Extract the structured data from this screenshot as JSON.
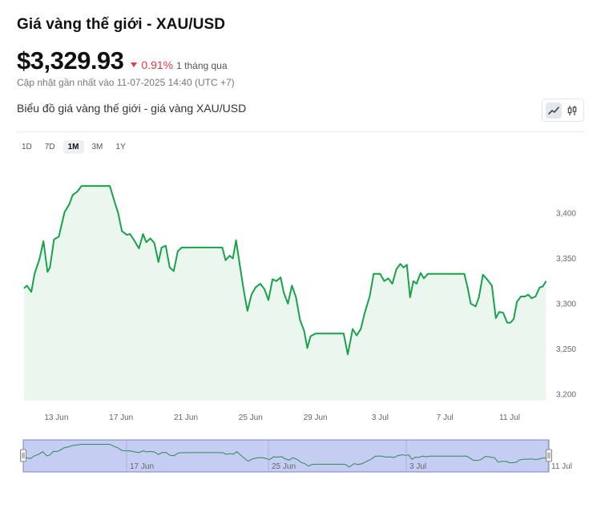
{
  "header": {
    "title": "Giá vàng thế giới - XAU/USD",
    "price": "$3,329.93",
    "change": "0.91%",
    "period": "1 tháng qua",
    "updated": "Cập nhật gần nhất vào 11-07-2025 14:40 (UTC +7)",
    "subtitle": "Biểu đồ giá vàng thế giới - giá vàng XAU/USD"
  },
  "toolbar": {
    "chart_types": [
      {
        "icon": "line-chart-icon",
        "active": true
      },
      {
        "icon": "candlestick-icon",
        "active": false
      }
    ]
  },
  "ranges": [
    {
      "label": "1D",
      "active": false
    },
    {
      "label": "7D",
      "active": false
    },
    {
      "label": "1M",
      "active": true
    },
    {
      "label": "3M",
      "active": false
    },
    {
      "label": "1Y",
      "active": false
    }
  ],
  "colors": {
    "line": "#16a34a",
    "area": "#eaf6ee",
    "change_down": "#e53945",
    "navigator_fill": "#c5cdf3",
    "navigator_border": "#7c86c4"
  },
  "chart_data": {
    "type": "area",
    "x_tick_labels": [
      "13 Jun",
      "17 Jun",
      "21 Jun",
      "25 Jun",
      "29 Jun",
      "3 Jul",
      "7 Jul",
      "11 Jul"
    ],
    "navigator_tick_labels": [
      "17 Jun",
      "25 Jun",
      "3 Jul",
      "11 Jul"
    ],
    "y_ticks": [
      3200,
      3250,
      3300,
      3350,
      3400
    ],
    "ylim": [
      3200,
      3430
    ],
    "x_start": "2025-06-11",
    "series": [
      {
        "values": [
          [
            0,
            3317
          ],
          [
            0.18,
            3320
          ],
          [
            0.45,
            3313
          ],
          [
            0.65,
            3333
          ],
          [
            0.95,
            3349
          ],
          [
            1.2,
            3369
          ],
          [
            1.45,
            3335
          ],
          [
            1.6,
            3340
          ],
          [
            1.85,
            3371
          ],
          [
            2.15,
            3374
          ],
          [
            2.5,
            3401
          ],
          [
            2.8,
            3410
          ],
          [
            3.0,
            3420
          ],
          [
            3.3,
            3424
          ],
          [
            3.55,
            3430
          ],
          [
            4.4,
            3430
          ],
          [
            5.3,
            3430
          ],
          [
            5.6,
            3412
          ],
          [
            5.8,
            3401
          ],
          [
            6.05,
            3380
          ],
          [
            6.35,
            3376
          ],
          [
            6.55,
            3377
          ],
          [
            6.8,
            3370
          ],
          [
            7.1,
            3361
          ],
          [
            7.35,
            3377
          ],
          [
            7.55,
            3368
          ],
          [
            7.8,
            3372
          ],
          [
            8.05,
            3367
          ],
          [
            8.3,
            3346
          ],
          [
            8.5,
            3362
          ],
          [
            8.75,
            3364
          ],
          [
            9.0,
            3340
          ],
          [
            9.25,
            3336
          ],
          [
            9.5,
            3358
          ],
          [
            9.75,
            3362
          ],
          [
            10.0,
            3362
          ],
          [
            11.0,
            3362
          ],
          [
            12.0,
            3362
          ],
          [
            12.25,
            3362
          ],
          [
            12.45,
            3348
          ],
          [
            12.7,
            3353
          ],
          [
            12.9,
            3350
          ],
          [
            13.1,
            3370
          ],
          [
            13.35,
            3340
          ],
          [
            13.6,
            3312
          ],
          [
            13.8,
            3292
          ],
          [
            14.05,
            3310
          ],
          [
            14.3,
            3318
          ],
          [
            14.6,
            3322
          ],
          [
            14.85,
            3316
          ],
          [
            15.1,
            3304
          ],
          [
            15.35,
            3327
          ],
          [
            15.6,
            3325
          ],
          [
            15.85,
            3329
          ],
          [
            16.05,
            3312
          ],
          [
            16.3,
            3300
          ],
          [
            16.55,
            3320
          ],
          [
            16.8,
            3307
          ],
          [
            17.05,
            3282
          ],
          [
            17.3,
            3270
          ],
          [
            17.5,
            3251
          ],
          [
            17.7,
            3264
          ],
          [
            18.0,
            3267
          ],
          [
            18.3,
            3267
          ],
          [
            19.0,
            3267
          ],
          [
            19.75,
            3267
          ],
          [
            20.0,
            3244
          ],
          [
            20.3,
            3272
          ],
          [
            20.55,
            3265
          ],
          [
            20.8,
            3272
          ],
          [
            21.05,
            3290
          ],
          [
            21.35,
            3308
          ],
          [
            21.6,
            3333
          ],
          [
            22.0,
            3333
          ],
          [
            22.25,
            3325
          ],
          [
            22.5,
            3328
          ],
          [
            22.75,
            3322
          ],
          [
            23.0,
            3338
          ],
          [
            23.25,
            3344
          ],
          [
            23.45,
            3340
          ],
          [
            23.65,
            3343
          ],
          [
            23.85,
            3307
          ],
          [
            24.05,
            3325
          ],
          [
            24.25,
            3322
          ],
          [
            24.5,
            3334
          ],
          [
            24.7,
            3328
          ],
          [
            24.95,
            3333
          ],
          [
            25.3,
            3333
          ],
          [
            27.2,
            3333
          ],
          [
            27.4,
            3318
          ],
          [
            27.6,
            3300
          ],
          [
            27.9,
            3297
          ],
          [
            28.1,
            3307
          ],
          [
            28.35,
            3332
          ],
          [
            28.6,
            3327
          ],
          [
            28.9,
            3320
          ],
          [
            29.15,
            3284
          ],
          [
            29.35,
            3291
          ],
          [
            29.6,
            3290
          ],
          [
            29.85,
            3279
          ],
          [
            30.05,
            3279
          ],
          [
            30.25,
            3283
          ],
          [
            30.45,
            3302
          ],
          [
            30.7,
            3308
          ],
          [
            30.95,
            3308
          ],
          [
            31.15,
            3310
          ],
          [
            31.35,
            3306
          ],
          [
            31.6,
            3308
          ],
          [
            31.85,
            3318
          ],
          [
            32.05,
            3319
          ],
          [
            32.25,
            3325
          ]
        ]
      }
    ]
  }
}
